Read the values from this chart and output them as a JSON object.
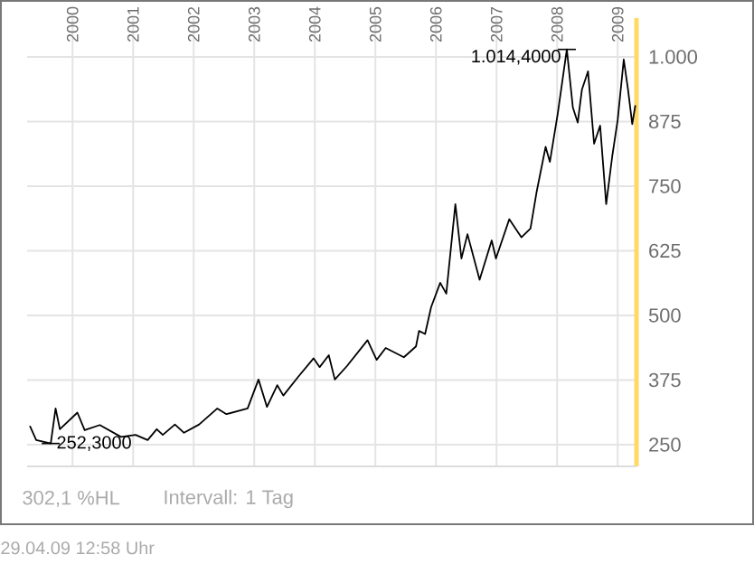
{
  "chart_data": {
    "type": "line",
    "color": "#000000",
    "x": [
      1999.3,
      1999.4,
      1999.64,
      1999.72,
      1999.79,
      2000.08,
      2000.2,
      2000.45,
      2000.8,
      2001.04,
      2001.24,
      2001.39,
      2001.49,
      2001.69,
      2001.84,
      2002.09,
      2002.39,
      2002.54,
      2002.89,
      2003.07,
      2003.21,
      2003.38,
      2003.48,
      2003.73,
      2003.98,
      2004.08,
      2004.23,
      2004.33,
      2004.53,
      2004.87,
      2005.02,
      2005.17,
      2005.47,
      2005.67,
      2005.72,
      2005.82,
      2005.92,
      2006.07,
      2006.17,
      2006.32,
      2006.42,
      2006.52,
      2006.72,
      2006.92,
      2006.99,
      2007.21,
      2007.41,
      2007.56,
      2007.66,
      2007.81,
      2007.88,
      2008.01,
      2008.16,
      2008.26,
      2008.34,
      2008.41,
      2008.51,
      2008.61,
      2008.71,
      2008.81,
      2008.91,
      2009.0,
      2009.1,
      2009.17,
      2009.24,
      2009.29
    ],
    "values": [
      285,
      259,
      252.3,
      320,
      280,
      312,
      278,
      288,
      265,
      269,
      259,
      280,
      269,
      289,
      273,
      289,
      320,
      309,
      320,
      376,
      323,
      365,
      345,
      382,
      417,
      400,
      423,
      376,
      402,
      452,
      414,
      437,
      419,
      440,
      470,
      464,
      516,
      563,
      542,
      715,
      610,
      657,
      569,
      645,
      610,
      686,
      651,
      668,
      738,
      826,
      797,
      890,
      1014.4,
      902,
      873,
      937,
      972,
      832,
      867,
      715,
      808,
      878,
      995,
      937,
      870,
      905
    ],
    "xlim": [
      1999.25,
      2009.31
    ],
    "ylim": [
      208,
      1075
    ],
    "xticks": [
      2000,
      2001,
      2002,
      2003,
      2004,
      2005,
      2006,
      2007,
      2008,
      2009
    ],
    "yticks": [
      250,
      375,
      500,
      625,
      750,
      875,
      {
        "value": 1000,
        "label": "1.000"
      }
    ],
    "grid": true,
    "annotations": [
      {
        "text": "1.014,4000",
        "x": 2008.16,
        "y": 1014.4
      },
      {
        "text": "252,3000",
        "x": 1999.64,
        "y": 252.3
      },
      "302,1 %HL",
      "Intervall: 1 Tag",
      "29.04.09   12:58 Uhr"
    ]
  }
}
